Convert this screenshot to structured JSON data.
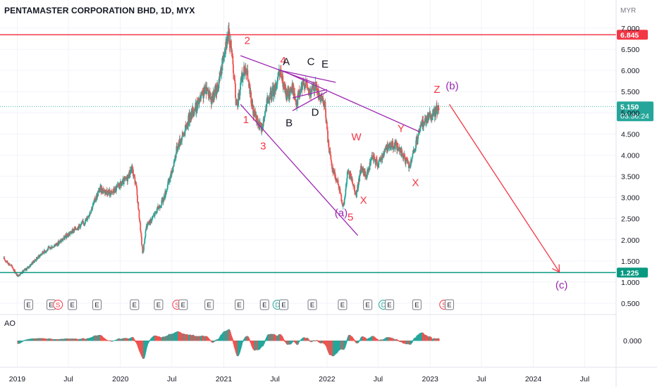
{
  "header": {
    "title": "PENTAMASTER CORPORATION BHD, 1D, MYX",
    "currency": "MYR"
  },
  "indicator": {
    "label": "AO"
  },
  "chart_data": {
    "type": "candlestick",
    "symbol": "PENTAMASTER CORPORATION BHD",
    "interval": "1D",
    "exchange": "MYX",
    "y_ticks": [
      "0.500",
      "1.000",
      "1.500",
      "2.000",
      "2.500",
      "3.000",
      "3.500",
      "4.000",
      "4.500",
      "5.000",
      "5.500",
      "6.000",
      "6.500",
      "7.000"
    ],
    "ylim": [
      0.35,
      7.2
    ],
    "x_ticks": [
      "2019",
      "Jul",
      "2020",
      "Jul",
      "2021",
      "Jul",
      "2022",
      "Jul",
      "2023",
      "Jul",
      "2024",
      "Jul"
    ],
    "price_path": [
      [
        "2018-11-15",
        1.55
      ],
      [
        "2018-12-15",
        1.35
      ],
      [
        "2019-01-01",
        1.15
      ],
      [
        "2019-02-01",
        1.3
      ],
      [
        "2019-04-01",
        1.7
      ],
      [
        "2019-06-01",
        1.95
      ],
      [
        "2019-07-15",
        2.2
      ],
      [
        "2019-09-01",
        2.45
      ],
      [
        "2019-10-01",
        2.9
      ],
      [
        "2019-10-20",
        3.2
      ],
      [
        "2019-12-01",
        3.1
      ],
      [
        "2020-01-10",
        3.35
      ],
      [
        "2020-01-25",
        3.45
      ],
      [
        "2020-02-10",
        3.7
      ],
      [
        "2020-02-25",
        3.3
      ],
      [
        "2020-03-10",
        2.4
      ],
      [
        "2020-03-20",
        1.65
      ],
      [
        "2020-04-01",
        2.3
      ],
      [
        "2020-05-01",
        2.6
      ],
      [
        "2020-06-01",
        2.95
      ],
      [
        "2020-07-01",
        3.6
      ],
      [
        "2020-07-20",
        4.2
      ],
      [
        "2020-08-15",
        4.55
      ],
      [
        "2020-09-01",
        4.9
      ],
      [
        "2020-10-01",
        5.2
      ],
      [
        "2020-11-01",
        5.6
      ],
      [
        "2020-11-20",
        5.3
      ],
      [
        "2020-12-15",
        5.7
      ],
      [
        "2021-01-05",
        6.6
      ],
      [
        "2021-01-18",
        6.85
      ],
      [
        "2021-02-01",
        6.3
      ],
      [
        "2021-02-15",
        5.1
      ],
      [
        "2021-03-05",
        5.8
      ],
      [
        "2021-03-20",
        6.1
      ],
      [
        "2021-04-15",
        5.0
      ],
      [
        "2021-05-15",
        4.6
      ],
      [
        "2021-06-01",
        5.2
      ],
      [
        "2021-07-01",
        5.6
      ],
      [
        "2021-07-20",
        5.95
      ],
      [
        "2021-08-10",
        5.4
      ],
      [
        "2021-09-01",
        5.6
      ],
      [
        "2021-09-15",
        5.25
      ],
      [
        "2021-10-01",
        5.55
      ],
      [
        "2021-10-15",
        5.75
      ],
      [
        "2021-11-01",
        5.45
      ],
      [
        "2021-11-20",
        5.65
      ],
      [
        "2021-12-10",
        5.3
      ],
      [
        "2021-12-25",
        5.15
      ],
      [
        "2022-01-05",
        4.3
      ],
      [
        "2022-01-20",
        3.7
      ],
      [
        "2022-02-10",
        3.3
      ],
      [
        "2022-03-01",
        2.75
      ],
      [
        "2022-03-15",
        3.6
      ],
      [
        "2022-04-01",
        3.4
      ],
      [
        "2022-04-15",
        3.05
      ],
      [
        "2022-05-01",
        3.7
      ],
      [
        "2022-05-20",
        3.5
      ],
      [
        "2022-06-10",
        3.95
      ],
      [
        "2022-07-01",
        3.8
      ],
      [
        "2022-08-01",
        4.2
      ],
      [
        "2022-09-01",
        4.25
      ],
      [
        "2022-10-01",
        3.95
      ],
      [
        "2022-10-20",
        3.7
      ],
      [
        "2022-11-10",
        4.2
      ],
      [
        "2022-12-01",
        4.7
      ],
      [
        "2022-12-20",
        4.9
      ],
      [
        "2023-01-10",
        4.95
      ],
      [
        "2023-02-01",
        5.15
      ]
    ],
    "horizontal_levels": [
      {
        "price": 6.845,
        "label": "6.845",
        "color": "#f23645"
      },
      {
        "price": 1.225,
        "label": "1.225",
        "color": "#089981"
      }
    ],
    "current_price": {
      "label": "5.150",
      "countdown": "03:36:24",
      "price": 5.15,
      "color": "#26a69a"
    },
    "trendlines": [
      {
        "from": [
          "2021-03-01",
          6.35
        ],
        "to": [
          "2021-11-20",
          5.7
        ],
        "color": "#9c27b0"
      },
      {
        "from": [
          "2021-09-01",
          5.35
        ],
        "to": [
          "2022-01-01",
          5.55
        ],
        "color": "#9c27b0"
      },
      {
        "from": [
          "2021-07-20",
          6.0
        ],
        "to": [
          "2022-02-01",
          5.72
        ],
        "color": "#9c27b0"
      },
      {
        "from": [
          "2021-07-25",
          6.0
        ],
        "to": [
          "2022-11-25",
          4.55
        ],
        "color": "#9c27b0"
      },
      {
        "from": [
          "2021-09-01",
          5.05
        ],
        "to": [
          "2022-01-01",
          5.5
        ],
        "color": "#9c27b0"
      },
      {
        "from": [
          "2021-03-01",
          5.2
        ],
        "to": [
          "2022-04-20",
          2.1
        ],
        "color": "#9c27b0"
      },
      {
        "from": [
          "2023-03-10",
          5.2
        ],
        "to": [
          "2024-04-01",
          1.25
        ],
        "color": "#f23645",
        "arrow": true
      }
    ],
    "annotations": [
      {
        "text": "1",
        "at": [
          "2021-03-20",
          4.76
        ],
        "color": "#f23645"
      },
      {
        "text": "2",
        "at": [
          "2021-03-25",
          6.63
        ],
        "color": "#f23645"
      },
      {
        "text": "3",
        "at": [
          "2021-05-20",
          4.13
        ],
        "color": "#f23645"
      },
      {
        "text": "4",
        "at": [
          "2021-07-30",
          6.15
        ],
        "color": "#f23645"
      },
      {
        "text": "5",
        "at": [
          "2022-03-25",
          2.45
        ],
        "color": "#f23645"
      },
      {
        "text": "A",
        "at": [
          "2021-08-10",
          6.13
        ],
        "color": "#131722"
      },
      {
        "text": "B",
        "at": [
          "2021-08-20",
          4.68
        ],
        "color": "#131722"
      },
      {
        "text": "C",
        "at": [
          "2021-11-05",
          6.13
        ],
        "color": "#131722"
      },
      {
        "text": "D",
        "at": [
          "2021-11-20",
          4.93
        ],
        "color": "#131722"
      },
      {
        "text": "E",
        "at": [
          "2021-12-25",
          6.07
        ],
        "color": "#131722"
      },
      {
        "text": "W",
        "at": [
          "2022-04-15",
          4.35
        ],
        "color": "#f23645"
      },
      {
        "text": "X",
        "at": [
          "2022-05-10",
          2.85
        ],
        "color": "#f23645"
      },
      {
        "text": "Y",
        "at": [
          "2022-09-20",
          4.55
        ],
        "color": "#f23645"
      },
      {
        "text": "X",
        "at": [
          "2022-11-10",
          3.27
        ],
        "color": "#f23645"
      },
      {
        "text": "Z",
        "at": [
          "2023-01-25",
          5.47
        ],
        "color": "#f23645"
      },
      {
        "text": "(a)",
        "at": [
          "2022-02-20",
          2.55
        ],
        "color": "#9c27b0"
      },
      {
        "text": "(b)",
        "at": [
          "2023-03-20",
          5.55
        ],
        "color": "#9c27b0"
      },
      {
        "text": "(c)",
        "at": [
          "2024-04-10",
          0.85
        ],
        "color": "#9c27b0"
      }
    ],
    "event_markers": [
      {
        "type": "E",
        "date": "2019-02-10"
      },
      {
        "type": "E",
        "date": "2019-05-01"
      },
      {
        "type": "S",
        "date": "2019-05-25"
      },
      {
        "type": "E",
        "date": "2019-07-15"
      },
      {
        "type": "E",
        "date": "2019-10-10"
      },
      {
        "type": "E",
        "date": "2020-02-20"
      },
      {
        "type": "E",
        "date": "2020-05-15"
      },
      {
        "type": "S",
        "date": "2020-07-20"
      },
      {
        "type": "E",
        "date": "2020-08-10"
      },
      {
        "type": "E",
        "date": "2020-11-10"
      },
      {
        "type": "E",
        "date": "2021-02-25"
      },
      {
        "type": "E",
        "date": "2021-05-25"
      },
      {
        "type": "D",
        "date": "2021-07-10"
      },
      {
        "type": "E",
        "date": "2021-08-01"
      },
      {
        "type": "E",
        "date": "2021-11-10"
      },
      {
        "type": "E",
        "date": "2022-02-25"
      },
      {
        "type": "E",
        "date": "2022-05-25"
      },
      {
        "type": "D",
        "date": "2022-07-20"
      },
      {
        "type": "E",
        "date": "2022-08-10"
      },
      {
        "type": "E",
        "date": "2022-11-15"
      },
      {
        "type": "S",
        "date": "2023-02-20"
      },
      {
        "type": "E",
        "date": "2023-03-10"
      }
    ],
    "ao_indicator": {
      "label": "AO",
      "y_ticks": [
        "0.000"
      ],
      "color_up": "#26a69a",
      "color_down": "#ef5350"
    },
    "grid": true
  }
}
